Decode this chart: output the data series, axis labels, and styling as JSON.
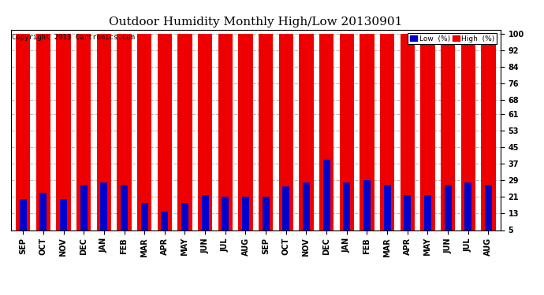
{
  "title": "Outdoor Humidity Monthly High/Low 20130901",
  "copyright": "Copyright 2013 Cartronics.com",
  "months": [
    "SEP",
    "OCT",
    "NOV",
    "DEC",
    "JAN",
    "FEB",
    "MAR",
    "APR",
    "MAY",
    "JUN",
    "JUL",
    "AUG",
    "SEP",
    "OCT",
    "NOV",
    "DEC",
    "JAN",
    "FEB",
    "MAR",
    "APR",
    "MAY",
    "JUN",
    "JUL",
    "AUG"
  ],
  "high_values": [
    100,
    100,
    100,
    100,
    100,
    100,
    100,
    100,
    100,
    100,
    100,
    100,
    100,
    100,
    100,
    100,
    100,
    100,
    100,
    100,
    100,
    100,
    100,
    100
  ],
  "low_values": [
    20,
    23,
    20,
    27,
    28,
    27,
    18,
    14,
    18,
    22,
    21,
    21,
    21,
    26,
    28,
    39,
    28,
    29,
    27,
    22,
    22,
    27,
    28,
    27
  ],
  "high_color": "#ee0000",
  "low_color": "#0000cc",
  "bg_color": "#ffffff",
  "grid_color": "#bbbbbb",
  "yticks": [
    5,
    13,
    21,
    29,
    37,
    45,
    53,
    61,
    68,
    76,
    84,
    92,
    100
  ],
  "ylim": [
    5,
    102
  ],
  "title_fontsize": 11,
  "tick_fontsize": 7,
  "legend_low_label": "Low  (%)",
  "legend_high_label": "High  (%)"
}
